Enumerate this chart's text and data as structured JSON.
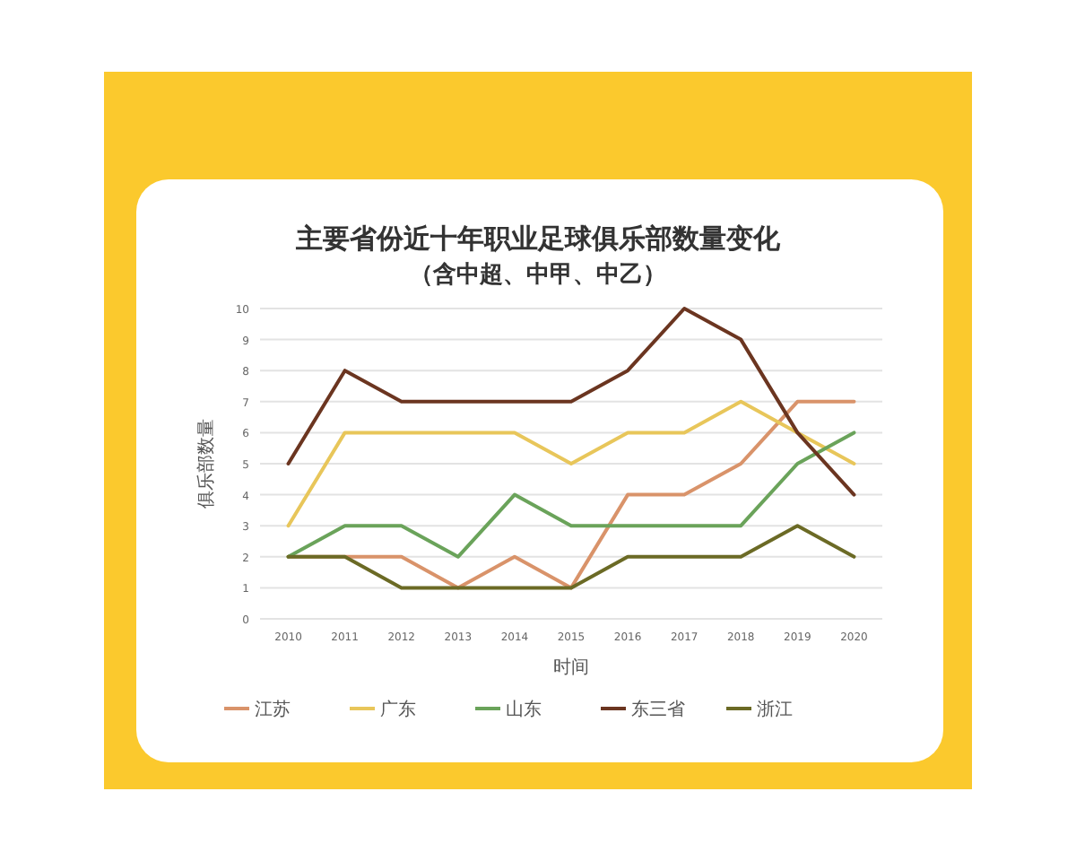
{
  "chart_data": {
    "type": "line",
    "title": "主要省份近十年职业足球俱乐部数量变化",
    "subtitle": "（含中超、中甲、中乙）",
    "xlabel": "时间",
    "ylabel": "俱乐部数量",
    "categories": [
      "2010",
      "2011",
      "2012",
      "2013",
      "2014",
      "2015",
      "2016",
      "2017",
      "2018",
      "2019",
      "2020"
    ],
    "series": [
      {
        "name": "江苏",
        "color": "#d9936a",
        "values": [
          2,
          2,
          2,
          1,
          2,
          1,
          4,
          4,
          5,
          7,
          7
        ]
      },
      {
        "name": "广东",
        "color": "#e8c65a",
        "values": [
          3,
          6,
          6,
          6,
          6,
          5,
          6,
          6,
          7,
          6,
          5
        ]
      },
      {
        "name": "山东",
        "color": "#6aa35a",
        "values": [
          2,
          3,
          3,
          2,
          4,
          3,
          3,
          3,
          3,
          5,
          6
        ]
      },
      {
        "name": "东三省",
        "color": "#6b3520",
        "values": [
          5,
          8,
          7,
          7,
          7,
          7,
          8,
          10,
          9,
          6,
          4
        ]
      },
      {
        "name": "浙江",
        "color": "#6b6a25",
        "values": [
          2,
          2,
          1,
          1,
          1,
          1,
          2,
          2,
          2,
          3,
          2
        ]
      }
    ],
    "ylim": [
      0,
      10
    ],
    "yticks": [
      0,
      1,
      2,
      3,
      4,
      5,
      6,
      7,
      8,
      9,
      10
    ],
    "grid": "y",
    "legend": "bottom",
    "marker": "none",
    "line_style": "solid"
  }
}
